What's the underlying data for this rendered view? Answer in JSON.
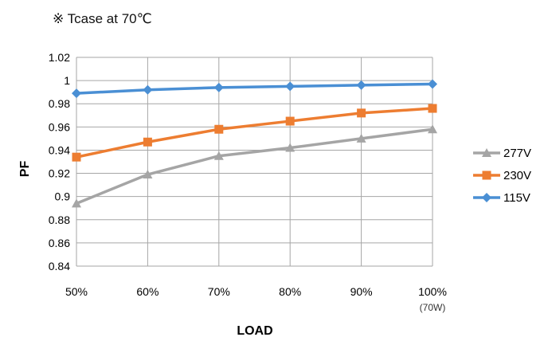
{
  "note": "※ Tcase at 70℃",
  "chart_data": {
    "type": "line",
    "title": "",
    "xlabel": "LOAD",
    "ylabel": "PF",
    "categories": [
      "50%",
      "60%",
      "70%",
      "80%",
      "90%",
      "100%"
    ],
    "category_sublabels": [
      "",
      "",
      "",
      "",
      "",
      "(70W)"
    ],
    "ylim": [
      0.84,
      1.02
    ],
    "yticks": [
      "0.84",
      "0.86",
      "0.88",
      "0.9",
      "0.92",
      "0.94",
      "0.96",
      "0.98",
      "1",
      "1.02"
    ],
    "grid": true,
    "legend": "right",
    "series": [
      {
        "name": "277V",
        "marker": "triangle",
        "color": "#a5a5a5",
        "values": [
          0.894,
          0.919,
          0.935,
          0.942,
          0.95,
          0.958
        ]
      },
      {
        "name": "230V",
        "marker": "square",
        "color": "#ed7d31",
        "values": [
          0.934,
          0.947,
          0.958,
          0.965,
          0.972,
          0.976
        ]
      },
      {
        "name": "115V",
        "marker": "diamond",
        "color": "#4a8fd4",
        "values": [
          0.989,
          0.992,
          0.994,
          0.995,
          0.996,
          0.997
        ]
      }
    ]
  }
}
